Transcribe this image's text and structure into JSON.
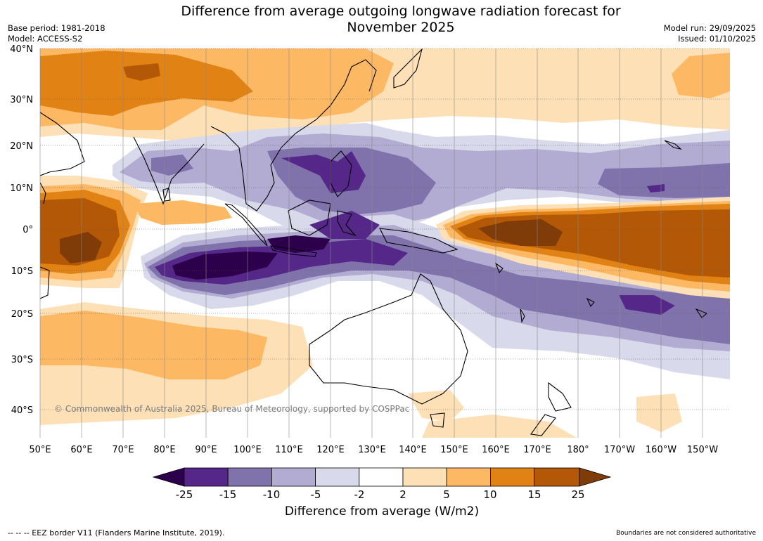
{
  "title_line1": "Difference from average outgoing longwave radiation forecast for",
  "title_line2": "November 2025",
  "base_period": "Base period: 1981-2018",
  "model": "Model: ACCESS-S2",
  "model_run": "Model run: 29/09/2025",
  "issued": "Issued: 01/10/2025",
  "copyright": "© Commonwealth of Australia 2025, Bureau of Meteorology, supported by COSPPac",
  "lat_labels": [
    "40°N",
    "30°N",
    "20°N",
    "10°N",
    "0°",
    "10°S",
    "20°S",
    "30°S",
    "40°S"
  ],
  "lon_labels": [
    "50°E",
    "60°E",
    "70°E",
    "80°E",
    "90°E",
    "100°E",
    "110°E",
    "120°E",
    "130°E",
    "140°E",
    "150°E",
    "160°E",
    "170°E",
    "180°",
    "170°W",
    "160°W",
    "150°W"
  ],
  "colorbar": {
    "ticks": [
      "-25",
      "-15",
      "-10",
      "-5",
      "-2",
      "2",
      "5",
      "10",
      "15",
      "25"
    ],
    "colors": [
      "#2d004b",
      "#542788",
      "#8073ac",
      "#b2abd2",
      "#d8daeb",
      "#ffffff",
      "#fee0b6",
      "#fdb863",
      "#e08214",
      "#b35806",
      "#7f3b08"
    ],
    "label": "Difference from average (W/m2)"
  },
  "footer_left": "--  --  -- EEZ border V11 (Flanders Marine Institute, 2019).",
  "footer_right": "Boundaries are not considered authoritative"
}
